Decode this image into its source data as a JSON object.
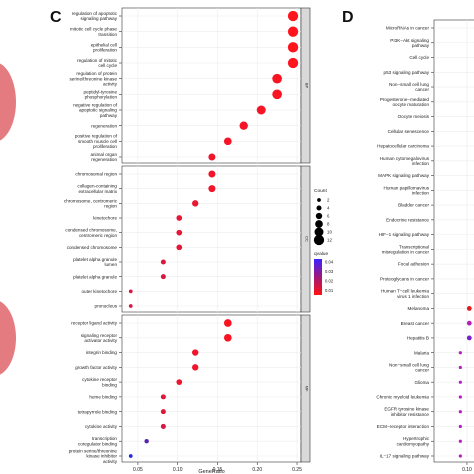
{
  "panel_c": {
    "letter": "C"
  },
  "panel_d": {
    "letter": "D"
  },
  "colors": {
    "high_p": "#e41a1c",
    "mid_p": "#b2182b",
    "low_p": "#1f35c4",
    "strip": "#d9d9d9",
    "left_blob": "#e06d72"
  },
  "chart_data": [
    {
      "type": "scatter",
      "title": "",
      "xlabel": "GeneRatio",
      "ylabel": "",
      "xlim": [
        0.03,
        0.255
      ],
      "x_ticks": [
        "0.05",
        "0.10",
        "0.15",
        "0.20",
        "0.25"
      ],
      "x_tick_values": [
        0.05,
        0.1,
        0.15,
        0.2,
        0.25
      ],
      "legend_count": {
        "title": "Count",
        "values": [
          "2",
          "4",
          "6",
          "8",
          "10",
          "12"
        ]
      },
      "legend_color": {
        "title": "qvalue",
        "ticks": [
          "0.04",
          "0.03",
          "0.02",
          "0.01"
        ]
      },
      "facets": [
        {
          "strip": "BP",
          "points": [
            {
              "label": "regulation of apoptotic signaling pathway",
              "x": 0.245,
              "count": 12,
              "q": 0.001
            },
            {
              "label": "mitotic cell cycle phase transition",
              "x": 0.245,
              "count": 12,
              "q": 0.001
            },
            {
              "label": "epithelial cell proliferation",
              "x": 0.245,
              "count": 12,
              "q": 0.001
            },
            {
              "label": "regulation of mitotic cell cycle",
              "x": 0.245,
              "count": 12,
              "q": 0.001
            },
            {
              "label": "regulation of protein serine/threonine kinase activity",
              "x": 0.225,
              "count": 11,
              "q": 0.002
            },
            {
              "label": "peptidyl-tyrosine phosphorylation",
              "x": 0.225,
              "count": 11,
              "q": 0.002
            },
            {
              "label": "negative regulation of apoptotic signaling pathway",
              "x": 0.205,
              "count": 10,
              "q": 0.003
            },
            {
              "label": "regeneration",
              "x": 0.183,
              "count": 9,
              "q": 0.003
            },
            {
              "label": "positive regulation of smooth muscle cell proliferation",
              "x": 0.163,
              "count": 8,
              "q": 0.003
            },
            {
              "label": "animal organ regeneration",
              "x": 0.143,
              "count": 7,
              "q": 0.004
            }
          ]
        },
        {
          "strip": "CC",
          "points": [
            {
              "label": "chromosomal region",
              "x": 0.143,
              "count": 7,
              "q": 0.004
            },
            {
              "label": "collagen-containing extracellular matrix",
              "x": 0.143,
              "count": 7,
              "q": 0.004
            },
            {
              "label": "chromosome, centromeric region",
              "x": 0.122,
              "count": 6,
              "q": 0.005
            },
            {
              "label": "kinetochore",
              "x": 0.102,
              "count": 5,
              "q": 0.006
            },
            {
              "label": "condensed chromosome, centromeric region",
              "x": 0.102,
              "count": 5,
              "q": 0.006
            },
            {
              "label": "condensed chromosome",
              "x": 0.102,
              "count": 5,
              "q": 0.006
            },
            {
              "label": "platelet alpha granule lumen",
              "x": 0.082,
              "count": 4,
              "q": 0.008
            },
            {
              "label": "platelet alpha granule",
              "x": 0.082,
              "count": 4,
              "q": 0.008
            },
            {
              "label": "outer kinetochore",
              "x": 0.041,
              "count": 2,
              "q": 0.009
            },
            {
              "label": "pronucleus",
              "x": 0.041,
              "count": 2,
              "q": 0.009
            }
          ]
        },
        {
          "strip": "MF",
          "points": [
            {
              "label": "receptor ligand activity",
              "x": 0.163,
              "count": 8,
              "q": 0.002
            },
            {
              "label": "signaling receptor activator activity",
              "x": 0.163,
              "count": 8,
              "q": 0.002
            },
            {
              "label": "integrin binding",
              "x": 0.122,
              "count": 6,
              "q": 0.004
            },
            {
              "label": "growth factor activity",
              "x": 0.122,
              "count": 6,
              "q": 0.004
            },
            {
              "label": "cytokine receptor binding",
              "x": 0.102,
              "count": 5,
              "q": 0.005
            },
            {
              "label": "heme binding",
              "x": 0.082,
              "count": 4,
              "q": 0.007
            },
            {
              "label": "tetrapyrrole binding",
              "x": 0.082,
              "count": 4,
              "q": 0.007
            },
            {
              "label": "cytokine activity",
              "x": 0.082,
              "count": 4,
              "q": 0.009
            },
            {
              "label": "transcription coregulator binding",
              "x": 0.061,
              "count": 3,
              "q": 0.035
            },
            {
              "label": "protein serine/threonine kinase inhibitor activity",
              "x": 0.041,
              "count": 2,
              "q": 0.045
            }
          ]
        }
      ]
    },
    {
      "type": "scatter",
      "title": "",
      "xlabel": "",
      "ylabel": "",
      "xlim": [
        0.03,
        0.115
      ],
      "x_ticks": [
        "0.10"
      ],
      "x_tick_values": [
        0.1
      ],
      "categories": [
        "MicroRNAs in cancer",
        "PI3K−Akt signaling pathway",
        "Cell cycle",
        "p53 signaling pathway",
        "Non−small cell lung cancer",
        "Progesterone−mediated oocyte maturation",
        "Oocyte meiosis",
        "Cellular senescence",
        "Hepatocellular carcinoma",
        "Human cytomegalovirus infection",
        "MAPK signaling pathway",
        "Human papillomavirus infection",
        "Bladder cancer",
        "Endocrine resistance",
        "HIF−1 signaling pathway",
        "Transcriptional misregulation in cancer",
        "Focal adhesion",
        "Proteoglycans in cancer",
        "Human T−cell leukemia virus 1 infection",
        "Melanoma",
        "Breast cancer",
        "Hepatitis B",
        "Malaria",
        "Non−small cell lung cancer",
        "Glioma",
        "Chronic myeloid leukemia",
        "EGFR tyrosine kinase inhibitor resistance",
        "ECM−receptor interaction",
        "Hypertrophic cardiomyopathy",
        "IL−17 signaling pathway"
      ],
      "points": [
        {
          "label": "Melanoma",
          "x": 0.105,
          "q": 0.001
        },
        {
          "label": "Breast cancer",
          "x": 0.105,
          "q": 0.03
        },
        {
          "label": "Hepatitis B",
          "x": 0.105,
          "q": 0.036
        },
        {
          "label": "Malaria",
          "x": 0.086,
          "q": 0.03
        },
        {
          "label": "Non−small cell lung cancer",
          "x": 0.086,
          "q": 0.03
        },
        {
          "label": "Glioma",
          "x": 0.086,
          "q": 0.03
        },
        {
          "label": "Chronic myeloid leukemia",
          "x": 0.086,
          "q": 0.03
        },
        {
          "label": "EGFR tyrosine kinase inhibitor resistance",
          "x": 0.086,
          "q": 0.03
        },
        {
          "label": "ECM−receptor interaction",
          "x": 0.086,
          "q": 0.03
        },
        {
          "label": "Hypertrophic cardiomyopathy",
          "x": 0.086,
          "q": 0.03
        },
        {
          "label": "IL−17 signaling pathway",
          "x": 0.086,
          "q": 0.03
        }
      ]
    }
  ]
}
